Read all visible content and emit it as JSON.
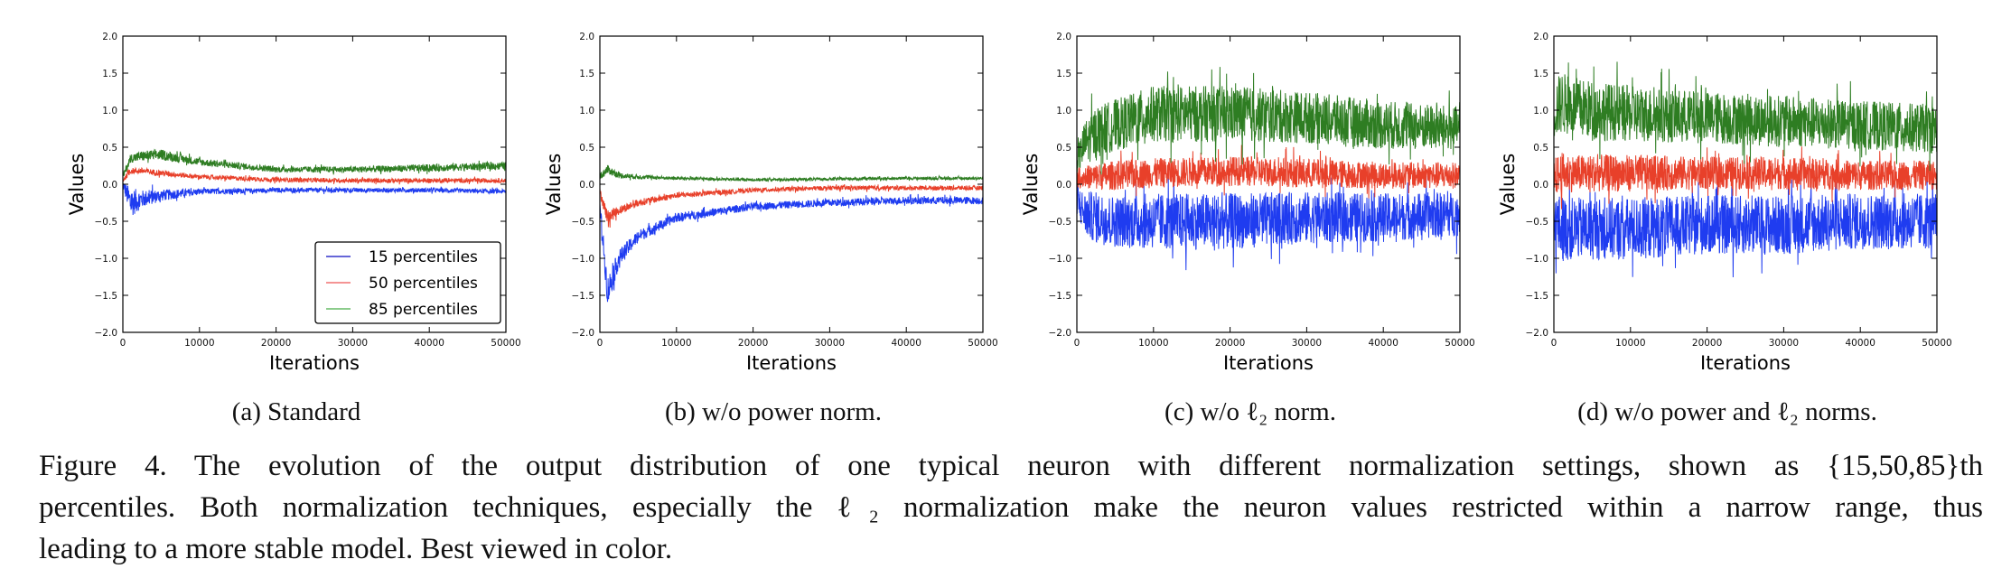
{
  "chart_data": [
    {
      "type": "line",
      "panel": "a",
      "subcaption": "(a) Standard",
      "xlabel": "Iterations",
      "ylabel": "Values",
      "xlim": [
        0,
        50000
      ],
      "ylim": [
        -2.0,
        2.0
      ],
      "xticks": [
        "0",
        "10000",
        "20000",
        "30000",
        "40000",
        "50000"
      ],
      "yticks": [
        "−2.0",
        "−1.5",
        "−1.0",
        "−0.5",
        "0.0",
        "0.5",
        "1.0",
        "1.5",
        "2.0"
      ],
      "grid": false,
      "legend": "bottom-right",
      "x": [
        0,
        1000,
        2500,
        5000,
        10000,
        20000,
        30000,
        40000,
        50000
      ],
      "series": [
        {
          "name": "15 percentiles",
          "color": "#1f3cf0",
          "values": [
            0,
            -0.25,
            -0.2,
            -0.15,
            -0.1,
            -0.08,
            -0.08,
            -0.08,
            -0.1
          ],
          "spread": [
            0.05,
            0.2,
            0.12,
            0.08,
            0.04,
            0.03,
            0.03,
            0.03,
            0.03
          ]
        },
        {
          "name": "50 percentiles",
          "color": "#e8402a",
          "values": [
            0.05,
            0.18,
            0.18,
            0.15,
            0.1,
            0.06,
            0.05,
            0.05,
            0.05
          ],
          "spread": [
            0.03,
            0.04,
            0.04,
            0.04,
            0.03,
            0.03,
            0.03,
            0.03,
            0.03
          ]
        },
        {
          "name": "85 percentiles",
          "color": "#2e7d22",
          "values": [
            0.1,
            0.35,
            0.38,
            0.4,
            0.3,
            0.2,
            0.2,
            0.22,
            0.25
          ],
          "spread": [
            0.04,
            0.06,
            0.07,
            0.07,
            0.05,
            0.04,
            0.04,
            0.05,
            0.05
          ]
        }
      ],
      "legend_colors": [
        "#3333cc",
        "#f07070",
        "#66bb66"
      ]
    },
    {
      "type": "line",
      "panel": "b",
      "subcaption": "(b) w/o power norm.",
      "xlabel": "Iterations",
      "ylabel": "Values",
      "xlim": [
        0,
        50000
      ],
      "ylim": [
        -2.0,
        2.0
      ],
      "xticks": [
        "0",
        "10000",
        "20000",
        "30000",
        "40000",
        "50000"
      ],
      "yticks": [
        "−2.0",
        "−1.5",
        "−1.0",
        "−0.5",
        "0.0",
        "0.5",
        "1.0",
        "1.5",
        "2.0"
      ],
      "grid": false,
      "x": [
        0,
        1000,
        2500,
        5000,
        10000,
        20000,
        30000,
        40000,
        50000
      ],
      "series": [
        {
          "color": "#1f3cf0",
          "values": [
            -0.3,
            -1.45,
            -1.0,
            -0.7,
            -0.45,
            -0.3,
            -0.25,
            -0.22,
            -0.22
          ],
          "spread": [
            0.1,
            0.2,
            0.12,
            0.08,
            0.06,
            0.05,
            0.05,
            0.05,
            0.05
          ]
        },
        {
          "color": "#e8402a",
          "values": [
            -0.1,
            -0.45,
            -0.35,
            -0.25,
            -0.15,
            -0.08,
            -0.05,
            -0.05,
            -0.05
          ],
          "spread": [
            0.05,
            0.1,
            0.06,
            0.05,
            0.04,
            0.03,
            0.03,
            0.03,
            0.03
          ]
        },
        {
          "color": "#2e7d22",
          "values": [
            0.1,
            0.2,
            0.12,
            0.1,
            0.08,
            0.06,
            0.07,
            0.08,
            0.08
          ],
          "spread": [
            0.05,
            0.06,
            0.04,
            0.03,
            0.02,
            0.02,
            0.02,
            0.02,
            0.02
          ]
        }
      ]
    },
    {
      "type": "line",
      "panel": "c",
      "subcaption": "(c) w/o ℓ₂ norm.",
      "xlabel": "Iterations",
      "ylabel": "Values",
      "xlim": [
        0,
        50000
      ],
      "ylim": [
        -2.0,
        2.0
      ],
      "xticks": [
        "0",
        "10000",
        "20000",
        "30000",
        "40000",
        "50000"
      ],
      "yticks": [
        "−2.0",
        "−1.5",
        "−1.0",
        "−0.5",
        "0.0",
        "0.5",
        "1.0",
        "1.5",
        "2.0"
      ],
      "grid": false,
      "x": [
        0,
        1000,
        2500,
        5000,
        10000,
        20000,
        30000,
        40000,
        50000
      ],
      "series": [
        {
          "color": "#1f3cf0",
          "values": [
            -0.2,
            -0.4,
            -0.45,
            -0.5,
            -0.5,
            -0.5,
            -0.45,
            -0.45,
            -0.4
          ],
          "spread": [
            0.2,
            0.3,
            0.35,
            0.35,
            0.38,
            0.38,
            0.35,
            0.33,
            0.3
          ]
        },
        {
          "color": "#e8402a",
          "values": [
            0.05,
            0.1,
            0.1,
            0.12,
            0.15,
            0.18,
            0.15,
            0.12,
            0.12
          ],
          "spread": [
            0.1,
            0.15,
            0.18,
            0.2,
            0.2,
            0.2,
            0.2,
            0.18,
            0.18
          ]
        },
        {
          "color": "#2e7d22",
          "values": [
            0.3,
            0.55,
            0.7,
            0.8,
            0.95,
            0.95,
            0.9,
            0.8,
            0.75
          ],
          "spread": [
            0.15,
            0.3,
            0.35,
            0.35,
            0.38,
            0.38,
            0.35,
            0.33,
            0.3
          ]
        }
      ]
    },
    {
      "type": "line",
      "panel": "d",
      "subcaption": "(d) w/o power and ℓ₂ norms.",
      "xlabel": "Iterations",
      "ylabel": "Values",
      "xlim": [
        0,
        50000
      ],
      "ylim": [
        -2.0,
        2.0
      ],
      "xticks": [
        "0",
        "10000",
        "20000",
        "30000",
        "40000",
        "50000"
      ],
      "yticks": [
        "−2.0",
        "−1.5",
        "−1.0",
        "−0.5",
        "0.0",
        "0.5",
        "1.0",
        "1.5",
        "2.0"
      ],
      "grid": false,
      "x": [
        0,
        1000,
        2500,
        5000,
        10000,
        20000,
        30000,
        40000,
        50000
      ],
      "series": [
        {
          "color": "#1f3cf0",
          "values": [
            -0.5,
            -0.6,
            -0.6,
            -0.6,
            -0.6,
            -0.55,
            -0.55,
            -0.5,
            -0.5
          ],
          "spread": [
            0.4,
            0.45,
            0.42,
            0.42,
            0.42,
            0.4,
            0.4,
            0.38,
            0.38
          ]
        },
        {
          "color": "#e8402a",
          "values": [
            0.1,
            0.15,
            0.15,
            0.15,
            0.15,
            0.15,
            0.15,
            0.12,
            0.12
          ],
          "spread": [
            0.25,
            0.28,
            0.25,
            0.25,
            0.25,
            0.22,
            0.22,
            0.2,
            0.2
          ]
        },
        {
          "color": "#2e7d22",
          "values": [
            1.0,
            1.1,
            1.05,
            1.0,
            0.95,
            0.9,
            0.85,
            0.8,
            0.75
          ],
          "spread": [
            0.4,
            0.42,
            0.4,
            0.4,
            0.38,
            0.35,
            0.35,
            0.33,
            0.33
          ]
        }
      ]
    }
  ],
  "caption": {
    "lines": [
      "Figure 4. The evolution of the output distribution of one typical neuron with different normalization settings, shown as {15,50,85}th",
      "percentiles. Both normalization techniques, especially the ℓ₂ normalization make the neuron values restricted within a narrow range, thus",
      "leading to a more stable model. Best viewed in color."
    ]
  }
}
